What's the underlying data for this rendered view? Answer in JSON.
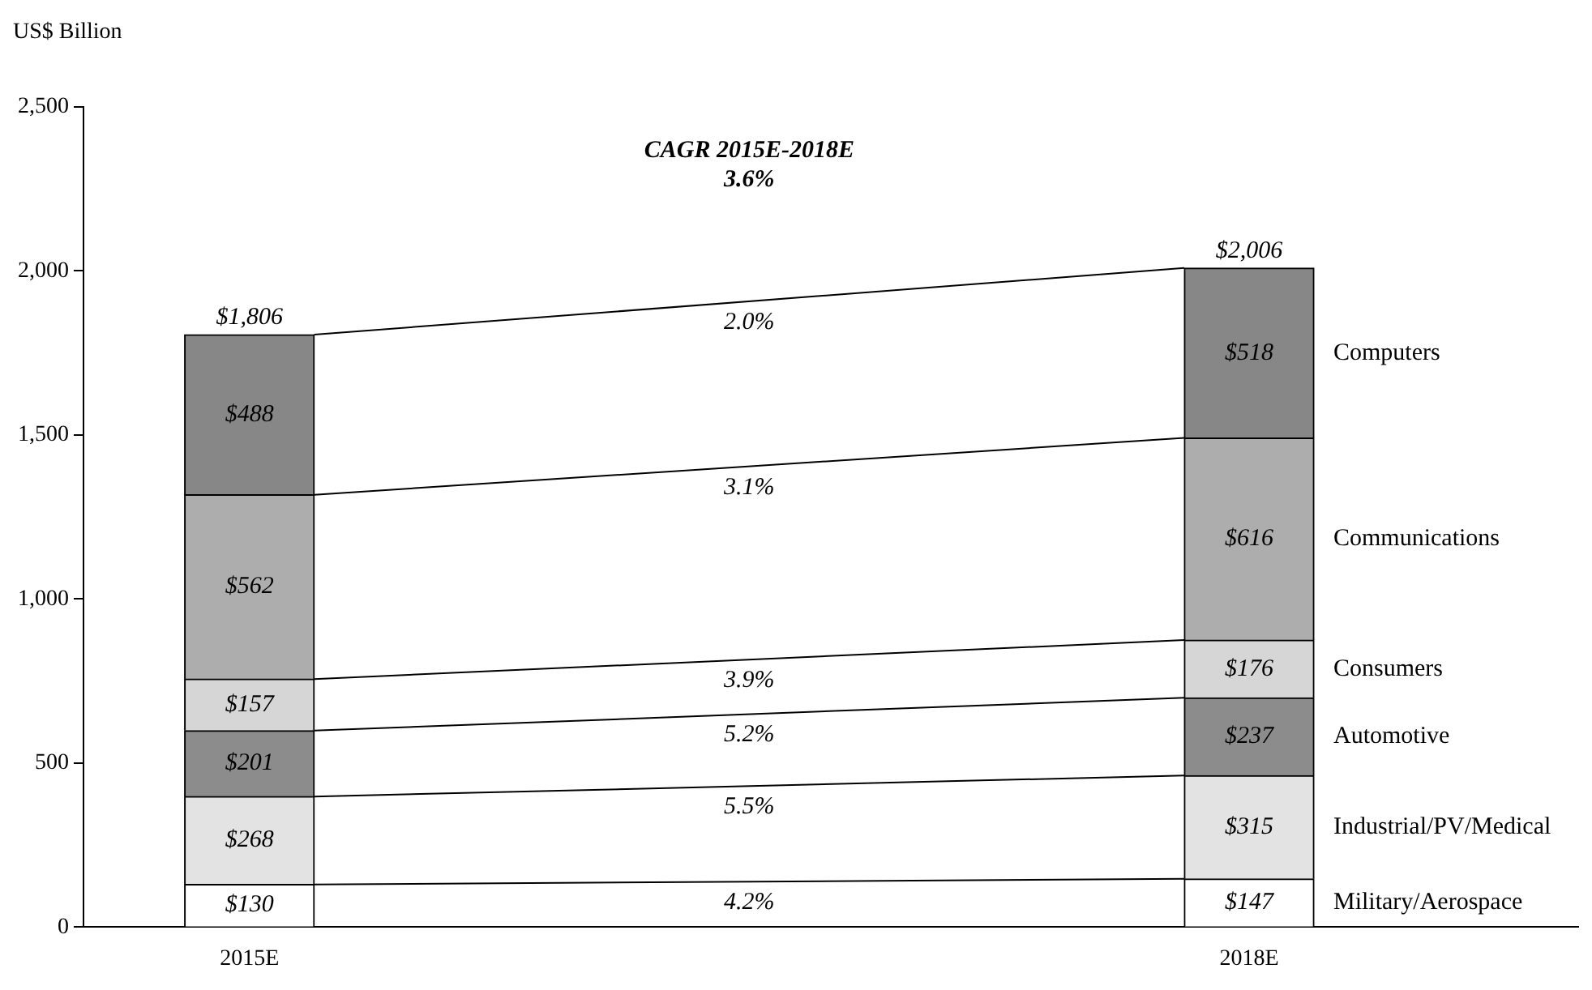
{
  "chart_data": {
    "type": "bar",
    "stacked": true,
    "ylabel": "US$ Billion",
    "categories": [
      "2015E",
      "2018E"
    ],
    "series": [
      {
        "name": "Military/Aerospace",
        "color": "#ffffff",
        "values": [
          130,
          147
        ],
        "value_labels": [
          "$130",
          "$147"
        ]
      },
      {
        "name": "Industrial/PV/Medical",
        "color": "#e3e3e3",
        "values": [
          268,
          315
        ],
        "value_labels": [
          "$268",
          "$315"
        ]
      },
      {
        "name": "Automotive",
        "color": "#8c8c8c",
        "values": [
          201,
          237
        ],
        "value_labels": [
          "$201",
          "$237"
        ]
      },
      {
        "name": "Consumers",
        "color": "#d6d6d6",
        "values": [
          157,
          176
        ],
        "value_labels": [
          "$157",
          "$176"
        ]
      },
      {
        "name": "Communications",
        "color": "#adadad",
        "values": [
          562,
          616
        ],
        "value_labels": [
          "$562",
          "$616"
        ]
      },
      {
        "name": "Computers",
        "color": "#878787",
        "values": [
          488,
          518
        ],
        "value_labels": [
          "$488",
          "$518"
        ]
      }
    ],
    "totals": [
      "$1,806",
      "$2,006"
    ],
    "ylim": [
      0,
      2500
    ],
    "yticks": [
      0,
      500,
      {
        "value": 1000,
        "label": "1,000"
      },
      {
        "value": 1500,
        "label": "1,500"
      },
      {
        "value": 2000,
        "label": "2,000"
      },
      {
        "value": 2500,
        "label": "2,500"
      }
    ],
    "annotations": [
      "CAGR 2015E-2018E",
      "3.6%",
      "4.2%",
      "5.5%",
      "5.2%",
      "3.9%",
      "3.1%",
      "2.0%"
    ],
    "legend": false
  }
}
